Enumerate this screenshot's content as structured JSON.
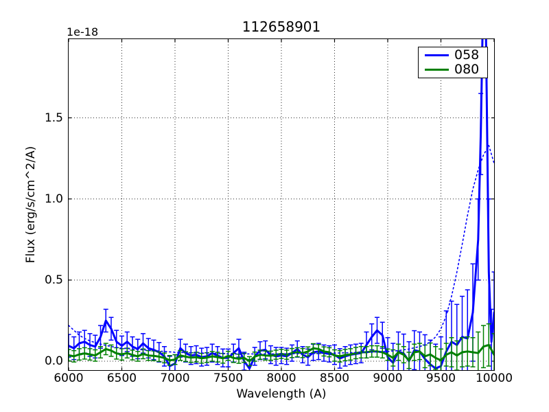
{
  "figure": {
    "title": "112658901",
    "offset_label": "1e-18",
    "xlabel": "Wavelength (A)",
    "ylabel": "Flux (erg/s/cm^2/A)"
  },
  "legend": {
    "items": [
      {
        "label": "058",
        "color": "#0000ff"
      },
      {
        "label": "080",
        "color": "#008000"
      }
    ]
  },
  "chart_data": {
    "type": "line",
    "title": "112658901",
    "xlabel": "Wavelength (A)",
    "ylabel": "Flux (erg/s/cm^2/A)",
    "y_offset_factor": "1e-18",
    "xlim": [
      6000,
      10000
    ],
    "ylim": [
      -0.055,
      1.985
    ],
    "x_ticks": [
      6000,
      6500,
      7000,
      7500,
      8000,
      8500,
      9000,
      9500,
      10000
    ],
    "x_tick_labels": [
      "6000",
      "6500",
      "7000",
      "7500",
      "8000",
      "8500",
      "9000",
      "9500",
      "10000"
    ],
    "y_ticks": [
      0.0,
      0.5,
      1.0,
      1.5
    ],
    "y_tick_labels": [
      "0.0",
      "0.5",
      "1.0",
      "1.5"
    ],
    "grid": true,
    "grid_style": "dotted",
    "legend_position": "upper right",
    "series": [
      {
        "name": "058",
        "color": "#0000ff",
        "style": "solid",
        "linewidth": 3,
        "in_legend": true,
        "x": [
          6000,
          6050,
          6100,
          6150,
          6200,
          6250,
          6300,
          6350,
          6400,
          6450,
          6500,
          6550,
          6600,
          6650,
          6700,
          6750,
          6800,
          6850,
          6900,
          6950,
          7000,
          7050,
          7100,
          7150,
          7200,
          7250,
          7300,
          7350,
          7400,
          7450,
          7500,
          7550,
          7600,
          7650,
          7700,
          7750,
          7800,
          7850,
          7900,
          7950,
          8000,
          8050,
          8100,
          8150,
          8200,
          8250,
          8300,
          8350,
          8400,
          8450,
          8500,
          8550,
          8600,
          8650,
          8700,
          8750,
          8800,
          8850,
          8900,
          8950,
          9000,
          9050,
          9100,
          9150,
          9200,
          9250,
          9300,
          9350,
          9400,
          9450,
          9500,
          9550,
          9600,
          9650,
          9700,
          9750,
          9800,
          9850,
          9875,
          9910,
          9950,
          9975,
          10000
        ],
        "y": [
          0.095,
          0.08,
          0.11,
          0.12,
          0.1,
          0.09,
          0.15,
          0.25,
          0.2,
          0.12,
          0.095,
          0.12,
          0.09,
          0.075,
          0.11,
          0.08,
          0.07,
          0.055,
          0.03,
          -0.03,
          -0.015,
          0.08,
          0.05,
          0.035,
          0.04,
          0.025,
          0.03,
          0.05,
          0.035,
          0.02,
          0.02,
          0.05,
          0.08,
          0.0,
          -0.045,
          0.03,
          0.065,
          0.07,
          0.04,
          0.03,
          0.035,
          0.03,
          0.05,
          0.075,
          0.04,
          0.025,
          0.055,
          0.06,
          0.05,
          0.045,
          0.04,
          0.017,
          0.03,
          0.04,
          0.045,
          0.05,
          0.1,
          0.15,
          0.19,
          0.16,
          0.025,
          -0.01,
          0.06,
          0.047,
          0.0,
          0.068,
          0.06,
          0.013,
          -0.02,
          -0.045,
          -0.03,
          0.06,
          0.12,
          0.1,
          0.15,
          0.14,
          0.3,
          0.75,
          1.4,
          2.75,
          0.55,
          0.12,
          0.3
        ],
        "yerr": [
          0.07,
          0.07,
          0.07,
          0.07,
          0.07,
          0.07,
          0.07,
          0.07,
          0.07,
          0.07,
          0.06,
          0.06,
          0.06,
          0.06,
          0.06,
          0.06,
          0.06,
          0.06,
          0.06,
          0.06,
          0.055,
          0.055,
          0.055,
          0.055,
          0.055,
          0.055,
          0.055,
          0.055,
          0.055,
          0.055,
          0.055,
          0.055,
          0.055,
          0.055,
          0.055,
          0.055,
          0.055,
          0.055,
          0.055,
          0.055,
          0.05,
          0.05,
          0.05,
          0.05,
          0.05,
          0.05,
          0.05,
          0.05,
          0.05,
          0.05,
          0.06,
          0.06,
          0.06,
          0.06,
          0.06,
          0.06,
          0.08,
          0.08,
          0.08,
          0.08,
          0.12,
          0.12,
          0.12,
          0.12,
          0.12,
          0.12,
          0.12,
          0.15,
          0.15,
          0.15,
          0.18,
          0.25,
          0.25,
          0.25,
          0.25,
          0.3,
          0.3,
          0.25,
          0.25,
          0.3,
          0.45,
          0.2,
          0.25
        ]
      },
      {
        "name": "080",
        "color": "#008000",
        "style": "solid",
        "linewidth": 3,
        "in_legend": true,
        "x": [
          6000,
          6050,
          6100,
          6150,
          6200,
          6250,
          6300,
          6350,
          6400,
          6450,
          6500,
          6550,
          6600,
          6650,
          6700,
          6750,
          6800,
          6850,
          6900,
          6950,
          7000,
          7050,
          7100,
          7150,
          7200,
          7250,
          7300,
          7350,
          7400,
          7450,
          7500,
          7550,
          7600,
          7650,
          7700,
          7750,
          7800,
          7850,
          7900,
          7950,
          8000,
          8050,
          8100,
          8150,
          8200,
          8250,
          8300,
          8350,
          8400,
          8450,
          8500,
          8550,
          8600,
          8650,
          8700,
          8750,
          8800,
          8850,
          8900,
          8950,
          9000,
          9050,
          9100,
          9150,
          9200,
          9250,
          9300,
          9350,
          9400,
          9450,
          9500,
          9550,
          9600,
          9650,
          9700,
          9750,
          9800,
          9850,
          9900,
          9950,
          10000
        ],
        "y": [
          0.037,
          0.03,
          0.042,
          0.048,
          0.042,
          0.035,
          0.055,
          0.075,
          0.065,
          0.048,
          0.042,
          0.05,
          0.038,
          0.03,
          0.045,
          0.035,
          0.033,
          0.028,
          0.02,
          0.005,
          0.01,
          0.035,
          0.028,
          0.022,
          0.025,
          0.018,
          0.022,
          0.03,
          0.025,
          0.018,
          0.033,
          0.02,
          0.015,
          0.02,
          0.0,
          0.028,
          0.04,
          0.035,
          0.034,
          0.04,
          0.045,
          0.04,
          0.05,
          0.055,
          0.05,
          0.06,
          0.08,
          0.075,
          0.06,
          0.055,
          0.035,
          0.03,
          0.038,
          0.042,
          0.05,
          0.055,
          0.055,
          0.06,
          0.06,
          0.055,
          0.04,
          0.02,
          0.055,
          0.04,
          0.005,
          0.055,
          0.06,
          0.03,
          0.042,
          0.02,
          0.005,
          0.04,
          0.055,
          0.035,
          0.055,
          0.06,
          0.055,
          0.05,
          0.09,
          0.1,
          0.04
        ],
        "yerr": [
          0.035,
          0.035,
          0.035,
          0.035,
          0.035,
          0.035,
          0.035,
          0.035,
          0.035,
          0.035,
          0.035,
          0.03,
          0.03,
          0.03,
          0.03,
          0.03,
          0.03,
          0.03,
          0.03,
          0.03,
          0.03,
          0.03,
          0.03,
          0.03,
          0.03,
          0.03,
          0.03,
          0.03,
          0.03,
          0.03,
          0.028,
          0.028,
          0.028,
          0.028,
          0.028,
          0.028,
          0.028,
          0.028,
          0.028,
          0.028,
          0.028,
          0.028,
          0.028,
          0.028,
          0.028,
          0.028,
          0.028,
          0.028,
          0.028,
          0.028,
          0.035,
          0.035,
          0.035,
          0.035,
          0.035,
          0.035,
          0.035,
          0.035,
          0.035,
          0.035,
          0.035,
          0.05,
          0.05,
          0.05,
          0.05,
          0.05,
          0.05,
          0.07,
          0.07,
          0.07,
          0.07,
          0.07,
          0.09,
          0.09,
          0.09,
          0.09,
          0.09,
          0.13,
          0.13,
          0.13,
          0.13
        ]
      },
      {
        "name": "058 noise (dotted)",
        "color": "#0000ff",
        "style": "dotted",
        "linewidth": 1.6,
        "in_legend": false,
        "x": [
          6000,
          6050,
          6100,
          6150,
          6200,
          6300,
          6400,
          6500,
          6700,
          7000,
          7500,
          8000,
          8500,
          8800,
          9000,
          9100,
          9200,
          9300,
          9350,
          9400,
          9450,
          9500,
          9550,
          9600,
          9650,
          9700,
          9750,
          9800,
          9850,
          9900,
          9950,
          10000
        ],
        "y": [
          0.22,
          0.19,
          0.16,
          0.14,
          0.125,
          0.105,
          0.09,
          0.08,
          0.07,
          0.055,
          0.045,
          0.045,
          0.05,
          0.055,
          0.06,
          0.065,
          0.075,
          0.09,
          0.1,
          0.12,
          0.15,
          0.2,
          0.28,
          0.4,
          0.55,
          0.72,
          0.9,
          1.06,
          1.18,
          1.27,
          1.33,
          1.22
        ]
      }
    ]
  }
}
